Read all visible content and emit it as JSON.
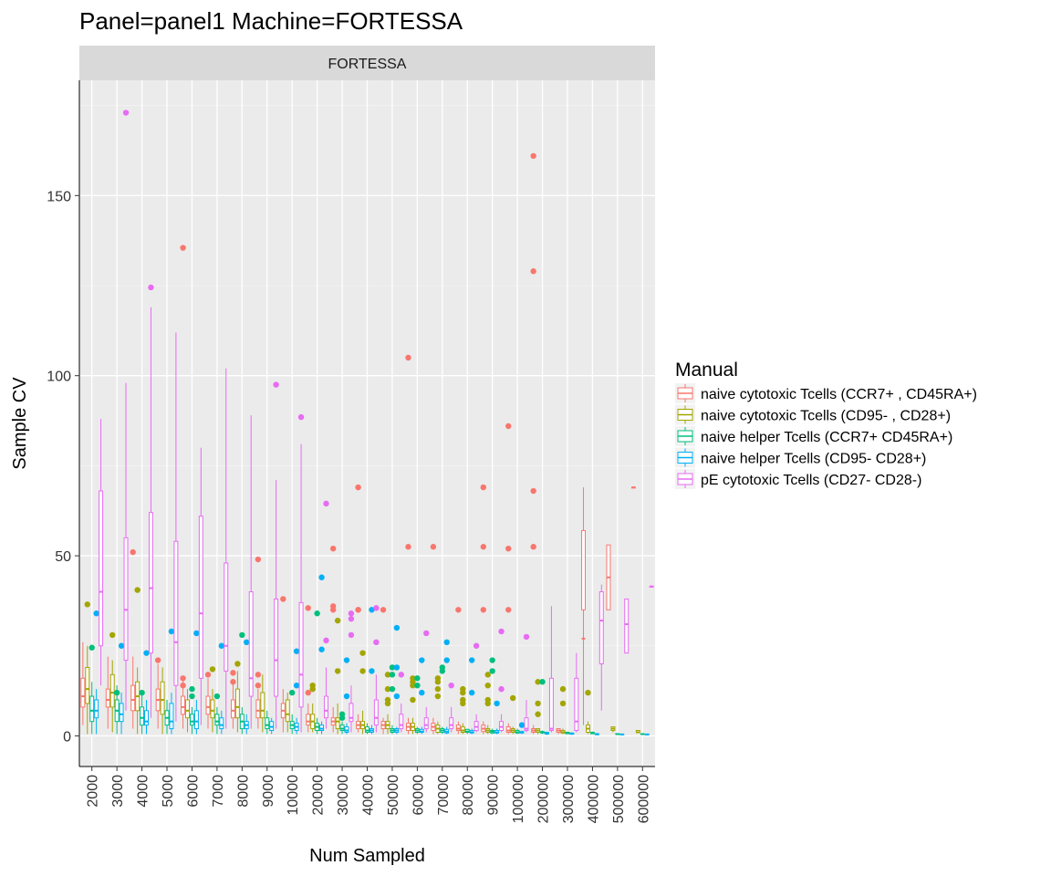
{
  "chart_data": {
    "type": "box",
    "title": "Panel=panel1 Machine=FORTESSA",
    "facet_label": "FORTESSA",
    "xlabel": "Num Sampled",
    "ylabel": "Sample CV",
    "ylim": [
      -8.5,
      182
    ],
    "yticks": [
      0,
      50,
      100,
      150
    ],
    "grid": true,
    "legend_position": "right",
    "legend_title": "Manual",
    "categories": [
      "2000",
      "3000",
      "4000",
      "5000",
      "6000",
      "7000",
      "8000",
      "9000",
      "10000",
      "20000",
      "30000",
      "40000",
      "50000",
      "60000",
      "70000",
      "80000",
      "90000",
      "100000",
      "200000",
      "300000",
      "400000",
      "500000",
      "600000"
    ],
    "series": [
      {
        "name": "naive cytotoxic Tcells (CCR7+ , CD45RA+)",
        "color": "#F8766D",
        "boxes": [
          [
            3,
            8,
            11,
            16,
            26
          ],
          [
            2,
            8,
            10,
            13,
            22
          ],
          [
            2,
            7,
            10,
            14,
            22
          ],
          [
            2,
            7,
            10,
            13,
            20
          ],
          [
            2,
            6,
            8,
            11,
            16
          ],
          [
            2,
            6,
            8,
            11,
            16
          ],
          [
            2,
            5,
            7,
            10,
            15
          ],
          [
            2,
            5,
            7,
            10,
            13
          ],
          [
            1,
            5,
            7,
            9,
            13
          ],
          [
            1,
            3,
            4,
            6,
            9
          ],
          [
            1,
            3,
            4,
            5,
            8
          ],
          [
            1,
            2,
            3,
            4,
            6
          ],
          [
            0.5,
            2,
            3,
            4,
            5
          ],
          [
            0.5,
            1.5,
            2.5,
            3.5,
            5
          ],
          [
            0.5,
            1.5,
            2.5,
            3.5,
            5
          ],
          [
            0.5,
            1.5,
            2,
            3,
            4
          ],
          [
            0.5,
            1.2,
            2,
            3,
            4
          ],
          [
            0.5,
            1,
            1.5,
            2.5,
            3.5
          ],
          [
            0.5,
            1,
            1.5,
            2,
            3
          ],
          [
            0.5,
            1,
            1.5,
            2,
            2
          ],
          [
            3,
            35,
            27,
            57,
            69
          ],
          [
            35,
            35,
            44,
            53,
            53
          ],
          [
            69,
            69,
            69,
            69,
            69
          ]
        ],
        "outliers": [
          [],
          [],
          [
            51
          ],
          [
            21
          ],
          [
            135.5,
            14,
            16
          ],
          [
            17
          ],
          [
            17.5,
            15
          ],
          [
            49,
            17,
            14
          ],
          [
            38
          ],
          [
            35.5,
            12
          ],
          [
            35,
            36,
            52
          ],
          [
            35,
            35,
            69
          ],
          [
            35
          ],
          [
            52.5,
            105
          ],
          [
            52.5
          ],
          [
            35
          ],
          [
            35,
            52.5,
            69
          ],
          [
            35,
            52,
            86
          ],
          [
            52.5,
            68,
            129,
            161
          ],
          [],
          [],
          [],
          []
        ]
      },
      {
        "name": "naive cytotoxic Tcells (CD95- , CD28+)",
        "color": "#A3A500",
        "boxes": [
          [
            0.5,
            9,
            13,
            19,
            25
          ],
          [
            1,
            8,
            12,
            17,
            21
          ],
          [
            0.5,
            7,
            11,
            15,
            19
          ],
          [
            0.5,
            6,
            10,
            15,
            19
          ],
          [
            1,
            5,
            7,
            10,
            13
          ],
          [
            1,
            5,
            7,
            10,
            13
          ],
          [
            1,
            5,
            8,
            13,
            18
          ],
          [
            1,
            5,
            7,
            12,
            17
          ],
          [
            1,
            4,
            6,
            10,
            12
          ],
          [
            1,
            2,
            4,
            6,
            9
          ],
          [
            0.5,
            2,
            4,
            5,
            9
          ],
          [
            0.5,
            2,
            3,
            4,
            7
          ],
          [
            0.5,
            2,
            3,
            4,
            6
          ],
          [
            0.5,
            1.5,
            2.5,
            3.5,
            5
          ],
          [
            0.5,
            1,
            2,
            3,
            4
          ],
          [
            0.5,
            1,
            1.5,
            2.5,
            3.5
          ],
          [
            0.5,
            1,
            1.5,
            2,
            3
          ],
          [
            0.5,
            1,
            1.5,
            2,
            2.5
          ],
          [
            0.5,
            1,
            1.5,
            2,
            2
          ],
          [
            0.5,
            0.8,
            1,
            1.5,
            2
          ],
          [
            0.5,
            1,
            2,
            3,
            4
          ],
          [
            1,
            1.5,
            2,
            2.5,
            2.5
          ],
          [
            1,
            1,
            1,
            1.5,
            1.5
          ]
        ],
        "outliers": [
          [
            36.5
          ],
          [
            28
          ],
          [
            40.5
          ],
          [],
          [],
          [
            18.5
          ],
          [
            20
          ],
          [],
          [],
          [
            13,
            14
          ],
          [
            18,
            32
          ],
          [
            23,
            18
          ],
          [
            17,
            13,
            10,
            9
          ],
          [
            16,
            14,
            10,
            15
          ],
          [
            16,
            15,
            11,
            13
          ],
          [
            13,
            10,
            12,
            9
          ],
          [
            17,
            14,
            10,
            9
          ],
          [
            10.5
          ],
          [
            15,
            9,
            6
          ],
          [
            13,
            9
          ],
          [
            12
          ],
          [],
          []
        ]
      },
      {
        "name": "naive helper Tcells (CCR7+ CD45RA+)",
        "color": "#00BF7D",
        "boxes": [
          [
            0.5,
            4,
            7,
            11,
            15
          ],
          [
            0.5,
            4,
            7,
            10,
            14
          ],
          [
            0.5,
            3,
            5,
            8,
            12
          ],
          [
            0.5,
            3,
            5,
            7,
            10
          ],
          [
            0.5,
            3,
            4,
            6,
            8
          ],
          [
            0.5,
            3,
            4,
            6,
            8
          ],
          [
            0.5,
            2,
            4,
            6,
            8
          ],
          [
            0.5,
            2,
            3,
            5,
            7
          ],
          [
            0.5,
            2,
            3,
            4,
            6
          ],
          [
            0.5,
            1.5,
            2.5,
            3.5,
            5
          ],
          [
            0.5,
            1.5,
            2,
            3,
            4
          ],
          [
            0.5,
            1,
            1.5,
            2.5,
            3.5
          ],
          [
            0.5,
            1,
            1.5,
            2,
            3
          ],
          [
            0.5,
            1,
            1.5,
            2,
            2.5
          ],
          [
            0.5,
            1,
            1.5,
            2,
            2.5
          ],
          [
            0.5,
            1,
            1.2,
            1.8,
            2
          ],
          [
            0.5,
            0.8,
            1.2,
            1.5,
            2
          ],
          [
            0.5,
            0.8,
            1,
            1.5,
            2
          ],
          [
            0.5,
            0.8,
            1,
            1.2,
            1.5
          ],
          [
            0.5,
            0.6,
            0.8,
            1,
            1.2
          ],
          [
            0.5,
            0.6,
            0.8,
            1,
            1.2
          ],
          [
            0.3,
            0.4,
            0.5,
            0.6,
            0.7
          ],
          [
            0.3,
            0.4,
            0.5,
            0.6,
            0.7
          ]
        ],
        "outliers": [
          [
            24.5
          ],
          [
            12
          ],
          [
            12
          ],
          [],
          [
            13,
            11
          ],
          [
            11
          ],
          [
            28
          ],
          [],
          [
            12
          ],
          [
            34
          ],
          [
            6,
            5
          ],
          [],
          [
            19,
            17,
            13
          ],
          [
            14,
            16
          ],
          [
            19,
            18
          ],
          [],
          [
            21,
            18
          ],
          [],
          [
            15
          ],
          [],
          [],
          [],
          []
        ]
      },
      {
        "name": "naive helper Tcells (CD95- CD28+)",
        "color": "#00B0F6",
        "boxes": [
          [
            0.5,
            5,
            7,
            10,
            13
          ],
          [
            0.5,
            4,
            6,
            9,
            12
          ],
          [
            0.5,
            3,
            4,
            7,
            10
          ],
          [
            0.5,
            2,
            4,
            9,
            12
          ],
          [
            0.5,
            2,
            4,
            7,
            10
          ],
          [
            0.5,
            2,
            3,
            5,
            7
          ],
          [
            0.5,
            2,
            3,
            4,
            6
          ],
          [
            0.5,
            1.5,
            2.5,
            4,
            5
          ],
          [
            0.5,
            1.5,
            2.5,
            3.5,
            5
          ],
          [
            0.5,
            1.5,
            2,
            3,
            4
          ],
          [
            0.5,
            1,
            1.5,
            2.5,
            3.5
          ],
          [
            0.5,
            1,
            1.5,
            2,
            3
          ],
          [
            0.5,
            1,
            1.5,
            2,
            2.5
          ],
          [
            0.5,
            1,
            1.2,
            1.8,
            2.5
          ],
          [
            0.5,
            0.8,
            1.2,
            1.8,
            2.5
          ],
          [
            0.5,
            0.8,
            1,
            1.5,
            2
          ],
          [
            0.5,
            0.8,
            1,
            1.5,
            2
          ],
          [
            0.5,
            0.8,
            1,
            1.2,
            1.5
          ],
          [
            0.3,
            0.5,
            0.8,
            1,
            1.2
          ],
          [
            0.3,
            0.5,
            0.6,
            0.8,
            1
          ],
          [
            0.2,
            0.3,
            0.5,
            0.6,
            0.8
          ],
          [
            0.2,
            0.3,
            0.4,
            0.5,
            0.6
          ],
          [
            0.2,
            0.3,
            0.4,
            0.5,
            0.6
          ]
        ],
        "outliers": [
          [
            34
          ],
          [
            25
          ],
          [
            23
          ],
          [
            29
          ],
          [
            28.5
          ],
          [
            25
          ],
          [
            26
          ],
          [],
          [
            23.5,
            14
          ],
          [
            24,
            44
          ],
          [
            21,
            11
          ],
          [
            35,
            18
          ],
          [
            30,
            19,
            11
          ],
          [
            21,
            12
          ],
          [
            26,
            21
          ],
          [
            21,
            12
          ],
          [
            9
          ],
          [
            3
          ],
          [],
          [],
          [],
          [],
          []
        ]
      },
      {
        "name": "pE cytotoxic Tcells (CD27-  CD28-)",
        "color": "#E76BF3",
        "boxes": [
          [
            14,
            25,
            40,
            68,
            88
          ],
          [
            7,
            21,
            35,
            55,
            98
          ],
          [
            5,
            23,
            41,
            62,
            119
          ],
          [
            4,
            14,
            26,
            54,
            112
          ],
          [
            3,
            16,
            34,
            61,
            80
          ],
          [
            2,
            18,
            25,
            48,
            102
          ],
          [
            2,
            11,
            16,
            40,
            89
          ],
          [
            2,
            11,
            21,
            38,
            71
          ],
          [
            1,
            8,
            17,
            37,
            81
          ],
          [
            2,
            5,
            7,
            11,
            19
          ],
          [
            1,
            4,
            5,
            9,
            14
          ],
          [
            1,
            3,
            5,
            10,
            17
          ],
          [
            1,
            2,
            3,
            6,
            9
          ],
          [
            1,
            2,
            3,
            5,
            8
          ],
          [
            1,
            2,
            3,
            5,
            8
          ],
          [
            1,
            1.5,
            2.5,
            4,
            6
          ],
          [
            1,
            1.5,
            2.5,
            4,
            6
          ],
          [
            1,
            1.5,
            2,
            5,
            10
          ],
          [
            1,
            1.5,
            2,
            16,
            36
          ],
          [
            1,
            1.5,
            4,
            16,
            23
          ],
          [
            7,
            20,
            32,
            40,
            42
          ],
          [
            23,
            23,
            31,
            38,
            38
          ],
          [
            41.5,
            41.5,
            41.5,
            41.5,
            41.5
          ]
        ],
        "outliers": [
          [],
          [
            173
          ],
          [
            124.5
          ],
          [],
          [],
          [],
          [],
          [
            97.5
          ],
          [
            88.5
          ],
          [
            64.5,
            26.5
          ],
          [
            34,
            32.5,
            28
          ],
          [
            35.5,
            26
          ],
          [
            17
          ],
          [
            28.5
          ],
          [
            14
          ],
          [
            25
          ],
          [
            29,
            13
          ],
          [
            27.5
          ],
          [],
          [],
          [],
          [],
          []
        ]
      }
    ]
  }
}
